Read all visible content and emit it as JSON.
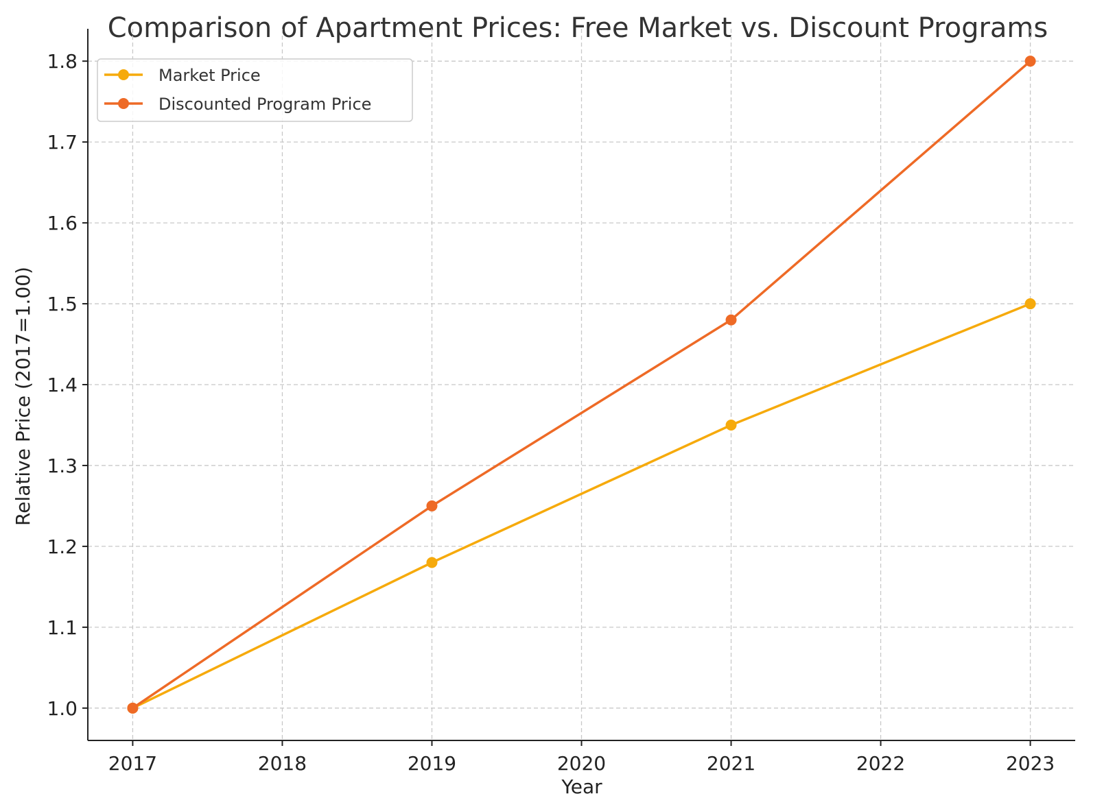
{
  "chart_data": {
    "type": "line",
    "title": "Comparison of Apartment Prices: Free Market vs. Discount Programs",
    "xlabel": "Year",
    "ylabel": "Relative Price (2017=1.00)",
    "x_ticks": [
      "2017",
      "2018",
      "2019",
      "2020",
      "2021",
      "2022",
      "2023"
    ],
    "y_ticks": [
      "1.0",
      "1.1",
      "1.2",
      "1.3",
      "1.4",
      "1.5",
      "1.6",
      "1.7",
      "1.8"
    ],
    "xlim": [
      2016.7,
      2023.3
    ],
    "ylim": [
      0.96,
      1.84
    ],
    "grid": true,
    "legend_position": "top-left",
    "series": [
      {
        "name": "Market Price",
        "color": "#f6aa0c",
        "x": [
          2017,
          2019,
          2021,
          2023
        ],
        "y": [
          1.0,
          1.18,
          1.35,
          1.5
        ]
      },
      {
        "name": "Discounted Program Price",
        "color": "#ee6a26",
        "x": [
          2017,
          2019,
          2021,
          2023
        ],
        "y": [
          1.0,
          1.25,
          1.48,
          1.8
        ]
      }
    ]
  }
}
